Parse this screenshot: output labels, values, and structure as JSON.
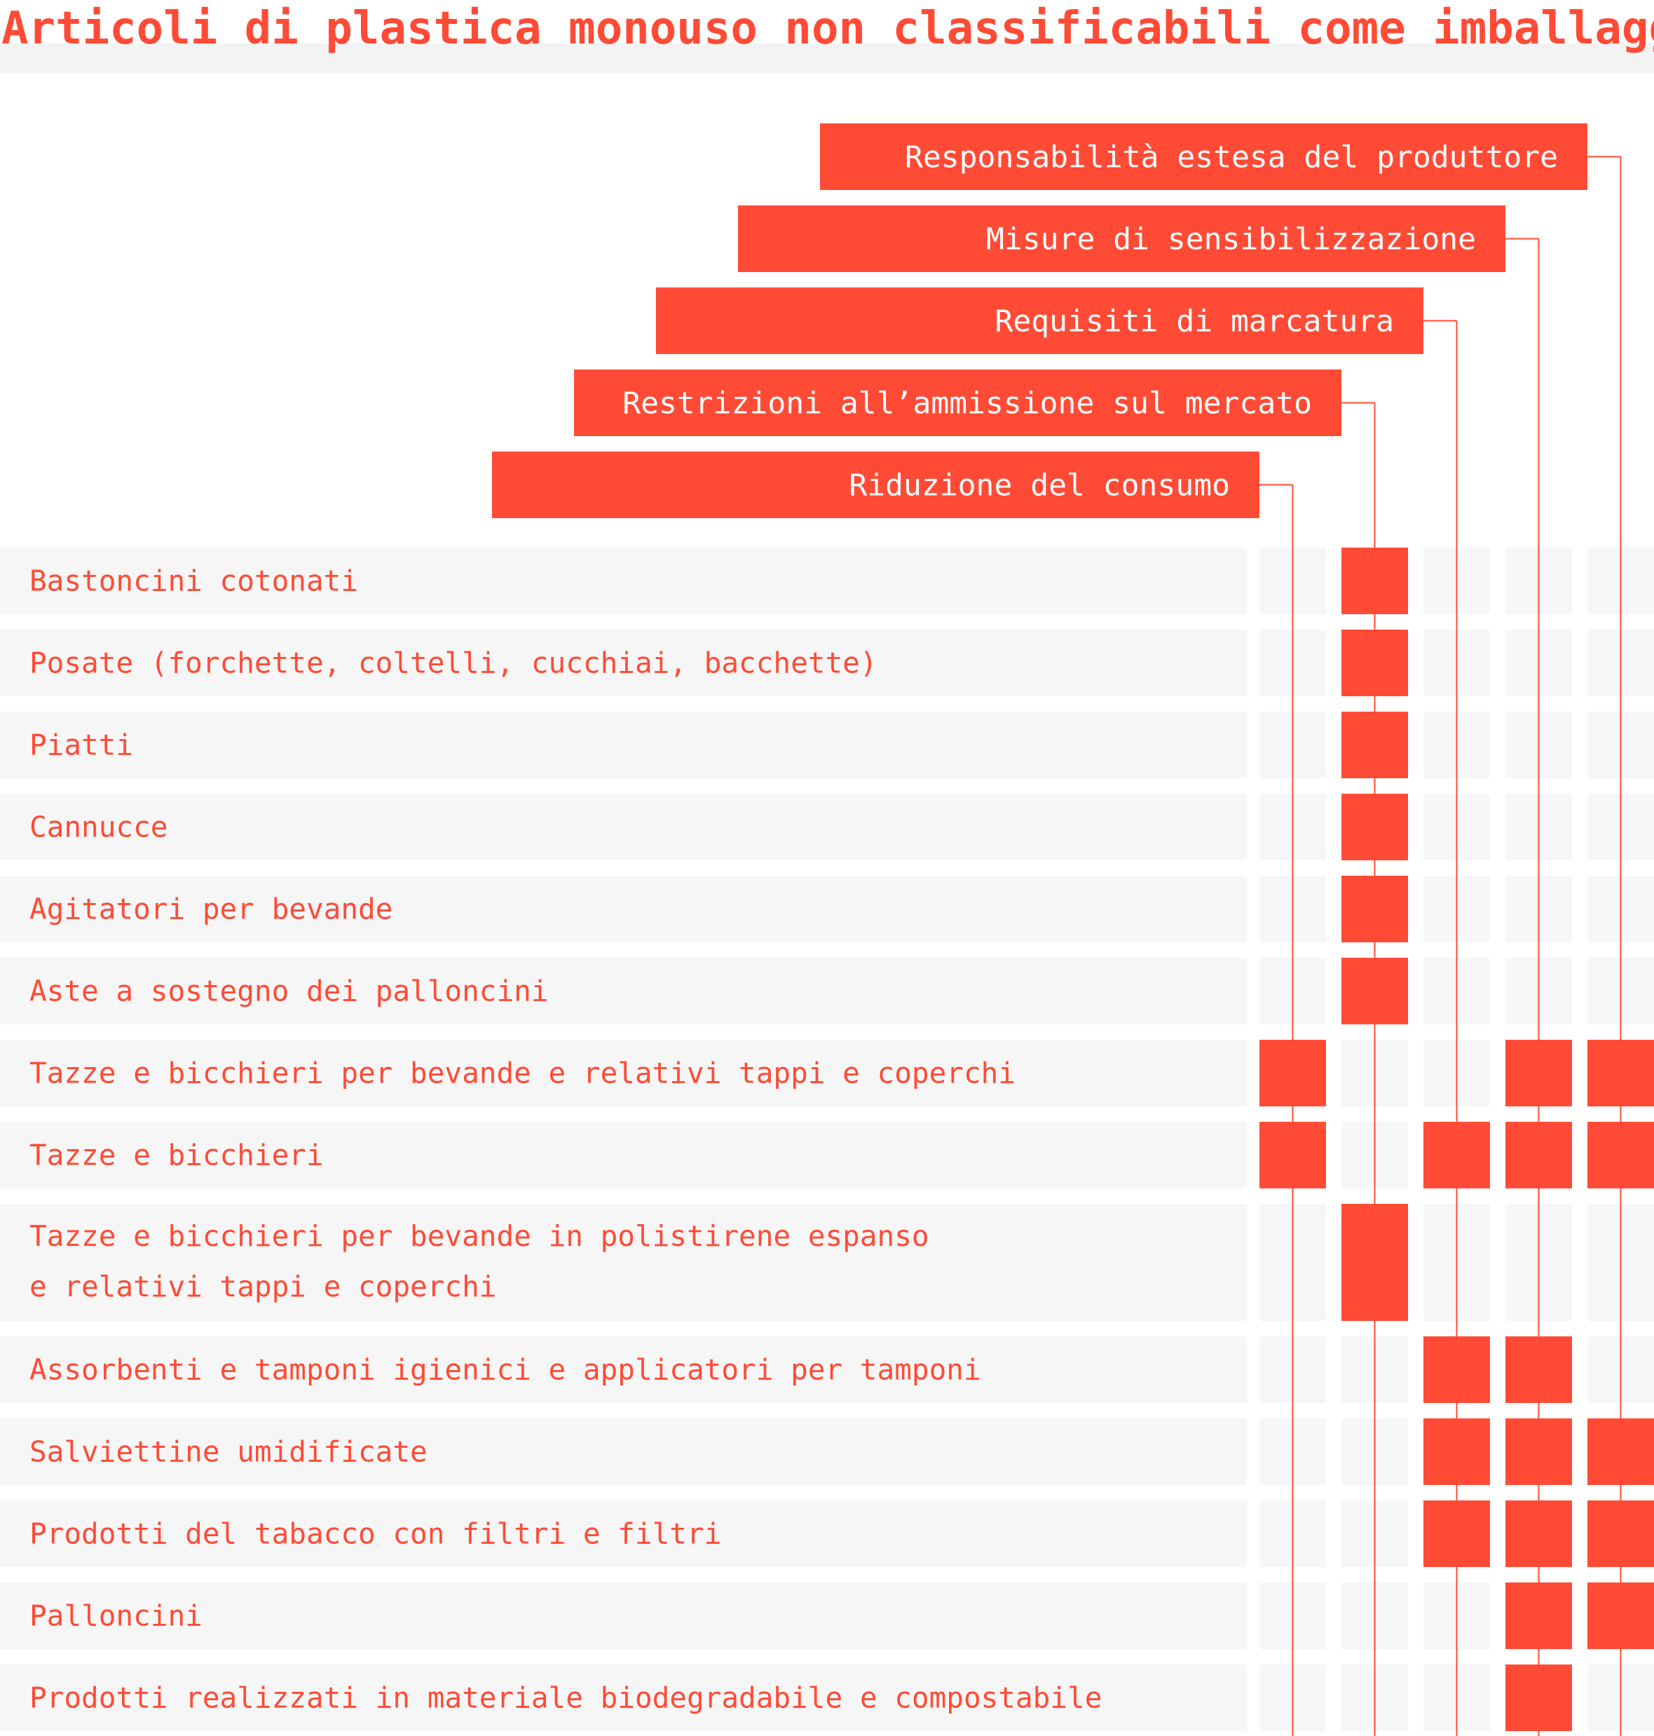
{
  "title": "Articoli di plastica monouso non classificabili come imballaggi",
  "colors": {
    "accent": "#FF4B36",
    "row_background": "#F6F6F6",
    "header_text": "#FFFFFF",
    "line": "#FF4B36"
  },
  "measures": [
    {
      "label": "Riduzione del consumo"
    },
    {
      "label": "Restrizioni all’ammissione sul mercato"
    },
    {
      "label": "Requisiti di marcatura"
    },
    {
      "label": "Misure di sensibilizzazione"
    },
    {
      "label": "Responsabilità estesa del produttore"
    }
  ],
  "items": [
    {
      "lines": [
        "Bastoncini cotonati"
      ],
      "applies": [
        false,
        true,
        false,
        false,
        false
      ]
    },
    {
      "lines": [
        "Posate (forchette, coltelli, cucchiai, bacchette)"
      ],
      "applies": [
        false,
        true,
        false,
        false,
        false
      ]
    },
    {
      "lines": [
        "Piatti"
      ],
      "applies": [
        false,
        true,
        false,
        false,
        false
      ]
    },
    {
      "lines": [
        "Cannucce"
      ],
      "applies": [
        false,
        true,
        false,
        false,
        false
      ]
    },
    {
      "lines": [
        "Agitatori per bevande"
      ],
      "applies": [
        false,
        true,
        false,
        false,
        false
      ]
    },
    {
      "lines": [
        "Aste a sostegno dei palloncini"
      ],
      "applies": [
        false,
        true,
        false,
        false,
        false
      ]
    },
    {
      "lines": [
        "Tazze e bicchieri per bevande e relativi tappi e coperchi"
      ],
      "applies": [
        true,
        false,
        false,
        true,
        true
      ]
    },
    {
      "lines": [
        "Tazze e bicchieri"
      ],
      "applies": [
        true,
        false,
        true,
        true,
        true
      ]
    },
    {
      "lines": [
        "Tazze e bicchieri per bevande in polistirene espanso",
        "e relativi tappi e coperchi"
      ],
      "applies": [
        false,
        true,
        false,
        false,
        false
      ]
    },
    {
      "lines": [
        "Assorbenti e tamponi igienici e applicatori per tamponi"
      ],
      "applies": [
        false,
        false,
        true,
        true,
        false
      ]
    },
    {
      "lines": [
        "Salviettine umidificate"
      ],
      "applies": [
        false,
        false,
        true,
        true,
        true
      ]
    },
    {
      "lines": [
        "Prodotti del tabacco con filtri e filtri"
      ],
      "applies": [
        false,
        false,
        true,
        true,
        true
      ]
    },
    {
      "lines": [
        "Palloncini"
      ],
      "applies": [
        false,
        false,
        false,
        true,
        true
      ]
    },
    {
      "lines": [
        "Prodotti realizzati in materiale biodegradabile e compostabile"
      ],
      "applies": [
        false,
        false,
        false,
        true,
        false
      ]
    }
  ]
}
